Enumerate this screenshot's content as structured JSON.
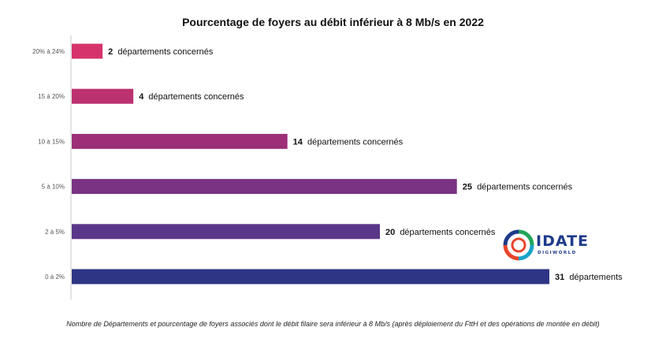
{
  "chart_data": {
    "type": "bar",
    "orientation": "horizontal",
    "title": "Pourcentage de foyers au débit inférieur à 8 Mb/s en 2022",
    "categories": [
      "20% à 24%",
      "15 à 20%",
      "10 à 15%",
      "5 à 10%",
      "2 à 5%",
      "0 à 2%"
    ],
    "values": [
      2,
      4,
      14,
      25,
      20,
      31
    ],
    "data_labels": [
      {
        "number": "2",
        "text": "départements concernés"
      },
      {
        "number": "4",
        "text": "départements concernés"
      },
      {
        "number": "14",
        "text": "départements concernés"
      },
      {
        "number": "25",
        "text": "départements concernés"
      },
      {
        "number": "20",
        "text": "départements concernés"
      },
      {
        "number": "31",
        "text": "départements"
      }
    ],
    "colors": [
      "#d6336c",
      "#bc3270",
      "#9c2f78",
      "#7a3282",
      "#5a3688",
      "#2e3585"
    ],
    "xlim": [
      0,
      31
    ],
    "grid": false,
    "caption": "Nombre de Départements et pourcentage de foyers associés dont le débit filaire sera inférieur à 8 Mb/s (après déploiement du FttH et des opérations de montée en débit)"
  },
  "logo": {
    "name": "IDATE",
    "subtitle": "DIGIWORLD",
    "icon": "idate-swirl-icon",
    "colors": [
      "#1e3a8a",
      "#22a559",
      "#e8452c",
      "#1aa3c9"
    ]
  }
}
